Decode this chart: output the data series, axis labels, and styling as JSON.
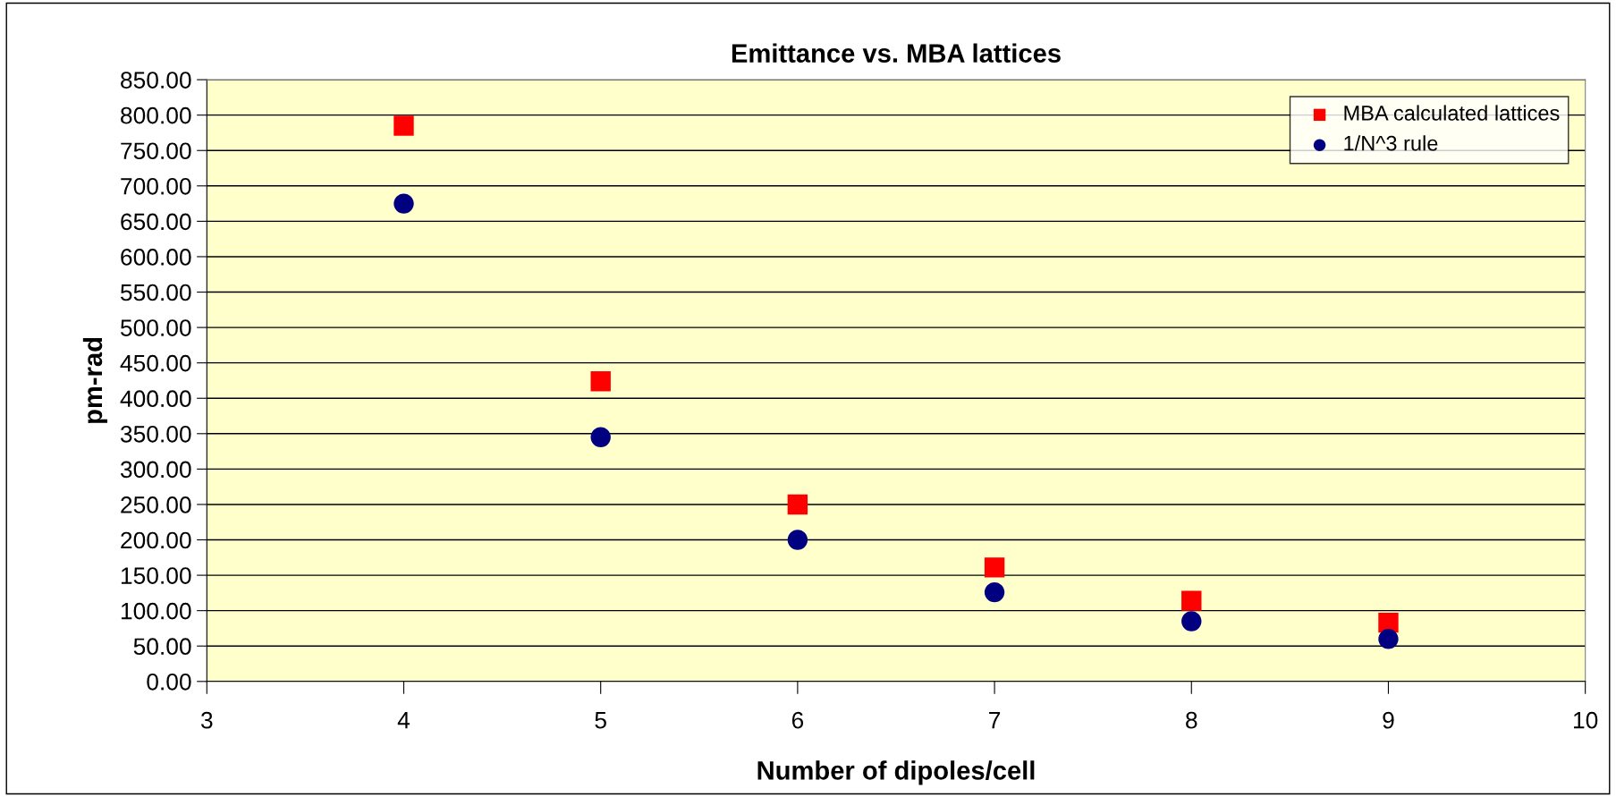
{
  "chart_data": {
    "type": "scatter",
    "title": "Emittance vs. MBA lattices",
    "xlabel": "Number of dipoles/cell",
    "ylabel": "pm-rad",
    "x": [
      4,
      5,
      6,
      7,
      8,
      9
    ],
    "series": [
      {
        "name": "MBA calculated lattices",
        "color": "#ff0000",
        "marker": "square",
        "values": [
          785,
          424,
          250,
          161,
          114,
          83
        ]
      },
      {
        "name": "1/N^3 rule",
        "color": "#000080",
        "marker": "circle",
        "values": [
          675,
          345,
          200,
          126,
          85,
          60
        ]
      }
    ],
    "xlim": [
      3,
      10
    ],
    "xticks": [
      3,
      4,
      5,
      6,
      7,
      8,
      9,
      10
    ],
    "ylim": [
      0,
      850
    ],
    "yticks": [
      {
        "value": 0,
        "label": "0.00"
      },
      {
        "value": 50,
        "label": "50.00"
      },
      {
        "value": 100,
        "label": "100.00"
      },
      {
        "value": 150,
        "label": "150.00"
      },
      {
        "value": 200,
        "label": "200.00"
      },
      {
        "value": 250,
        "label": "250.00"
      },
      {
        "value": 300,
        "label": "300.00"
      },
      {
        "value": 350,
        "label": "350.00"
      },
      {
        "value": 400,
        "label": "400.00"
      },
      {
        "value": 450,
        "label": "450.00"
      },
      {
        "value": 500,
        "label": "500.00"
      },
      {
        "value": 550,
        "label": "550.00"
      },
      {
        "value": 600,
        "label": "600.00"
      },
      {
        "value": 650,
        "label": "650.00"
      },
      {
        "value": 700,
        "label": "700.00"
      },
      {
        "value": 750,
        "label": "750.00"
      },
      {
        "value": 800,
        "label": "800.00"
      },
      {
        "value": 850,
        "label": "850.00"
      }
    ],
    "grid": "y",
    "legend": "top right"
  }
}
